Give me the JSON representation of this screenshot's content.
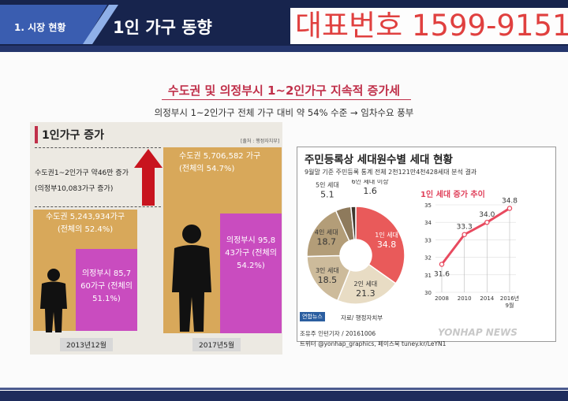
{
  "header": {
    "section_label": "1. 시장 현황",
    "page_title": "1인 가구 동향",
    "phone": "대표번호 1599-9151"
  },
  "headline": "수도권 및 의정부시 1~2인가구 지속적 증가세",
  "subline": "의정부시 1~2인가구 전체 가구 대비 약 54% 수준 → 임차수요 풍부",
  "colors": {
    "navy": "#17244d",
    "accent_red": "#c0304a",
    "tan": "#d8a85a",
    "magenta": "#c94cbf",
    "donut_red": "#e95a5a"
  },
  "left_chart": {
    "title": "1인가구 증가",
    "source": "[출처 : 행정자치부]",
    "increase_line1": "수도권1~2인가구 약46만 증가",
    "increase_line2": "(의정부10,083가구 증가)",
    "bar_2013_capital_1": "수도권 5,243,934가구",
    "bar_2013_capital_2": "(전체의 52.4%)",
    "bar_2013_ui_1": "의정부시 85,7",
    "bar_2013_ui_2": "60가구 (전체의",
    "bar_2013_ui_3": "51.1%)",
    "bar_2017_capital_1": "수도권 5,706,582 가구",
    "bar_2017_capital_2": "(전체의 54.7%)",
    "bar_2017_ui_1": "의정부시 95,8",
    "bar_2017_ui_2": "43가구 (전체의",
    "bar_2017_ui_3": "54.2%)",
    "cat_2013": "2013년12월",
    "cat_2017": "2017년5월"
  },
  "right_chart": {
    "title": "주민등록상 세대원수별 세대 현황",
    "subtitle": "9월말 기준 주민등록 통계 전체 2천121만4천428세대 분석 결과",
    "line_title": "1인 세대 증가 추이",
    "credit_1": "조유주 인턴기자 / 20161006",
    "credit_2": "트위터 @yonhap_graphics, 페이스북 tuney.kr/LeYN1",
    "logo": "연합뉴스",
    "data_source": "자료/ 행정자치부",
    "watermark": "YONHAP NEWS"
  },
  "chart_data": [
    {
      "type": "bar",
      "categories": [
        "2013년12월",
        "2017년5월"
      ],
      "series": [
        {
          "name": "수도권",
          "values": [
            5243934,
            5706582
          ],
          "share": [
            "52.4%",
            "54.7%"
          ]
        },
        {
          "name": "의정부시",
          "values": [
            85760,
            95843
          ],
          "share": [
            "51.1%",
            "54.2%"
          ]
        }
      ],
      "title": "1인가구 증가"
    },
    {
      "type": "pie",
      "labels": [
        "1인 세대",
        "2인 세대",
        "3인 세대",
        "4인 세대",
        "5인 세대",
        "6인 세대 이상"
      ],
      "values": [
        34.8,
        21.3,
        18.5,
        18.7,
        5.1,
        1.6
      ],
      "label_texts": [
        "1인 세대\n34.8",
        "2인 세대\n21.3",
        "3인 세대\n18.5",
        "4인 세대\n18.7",
        "5인 세대\n5.1",
        "6인 세대 이상\n1.6"
      ],
      "colors": [
        "#e95a5a",
        "#e8dcc4",
        "#cdbb9b",
        "#b39d78",
        "#8e7a5c",
        "#3f372d"
      ],
      "title": "주민등록상 세대원수별 세대 현황"
    },
    {
      "type": "line",
      "x": [
        "2008",
        "2010",
        "2014",
        "2016년 9월"
      ],
      "values": [
        31.6,
        33.3,
        34.0,
        34.8
      ],
      "labels": [
        "31.6",
        "33.3",
        "34.0",
        "34.8"
      ],
      "ylim": [
        30,
        35
      ],
      "yticks": [
        "30",
        "31",
        "32",
        "33",
        "34",
        "35"
      ],
      "title": "1인 세대 증가 추이"
    }
  ]
}
